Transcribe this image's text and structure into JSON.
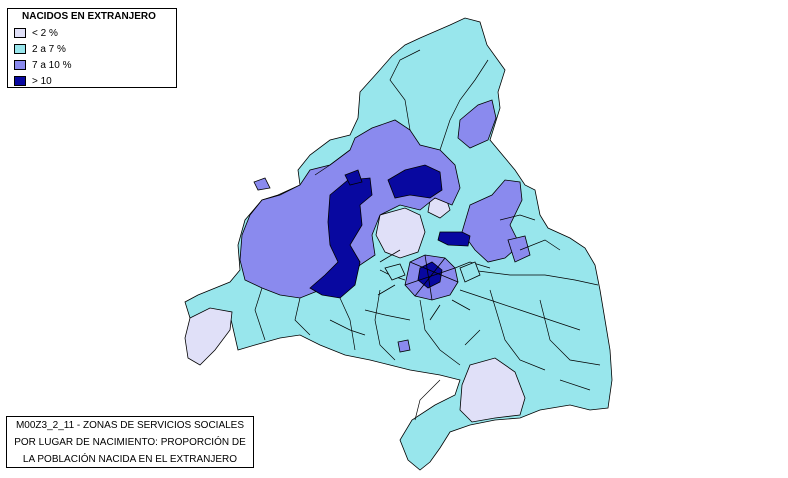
{
  "legend": {
    "title": "NACIDOS EN EXTRANJERO",
    "items": [
      {
        "label": "< 2 %",
        "color": "#e0e0f8"
      },
      {
        "label": "2 a 7 %",
        "color": "#98e6ec"
      },
      {
        "label": "7 a 10 %",
        "color": "#8a8aee"
      },
      {
        "label": "> 10",
        "color": "#0808a0"
      }
    ]
  },
  "caption": {
    "line1": "M00Z3_2_11 - ZONAS DE SERVICIOS SOCIALES",
    "line2": "POR LUGAR DE NACIMIENTO: PROPORCIÓN DE",
    "line3": "LA POBLACIÓN NACIDA EN EL EXTRANJERO"
  }
}
